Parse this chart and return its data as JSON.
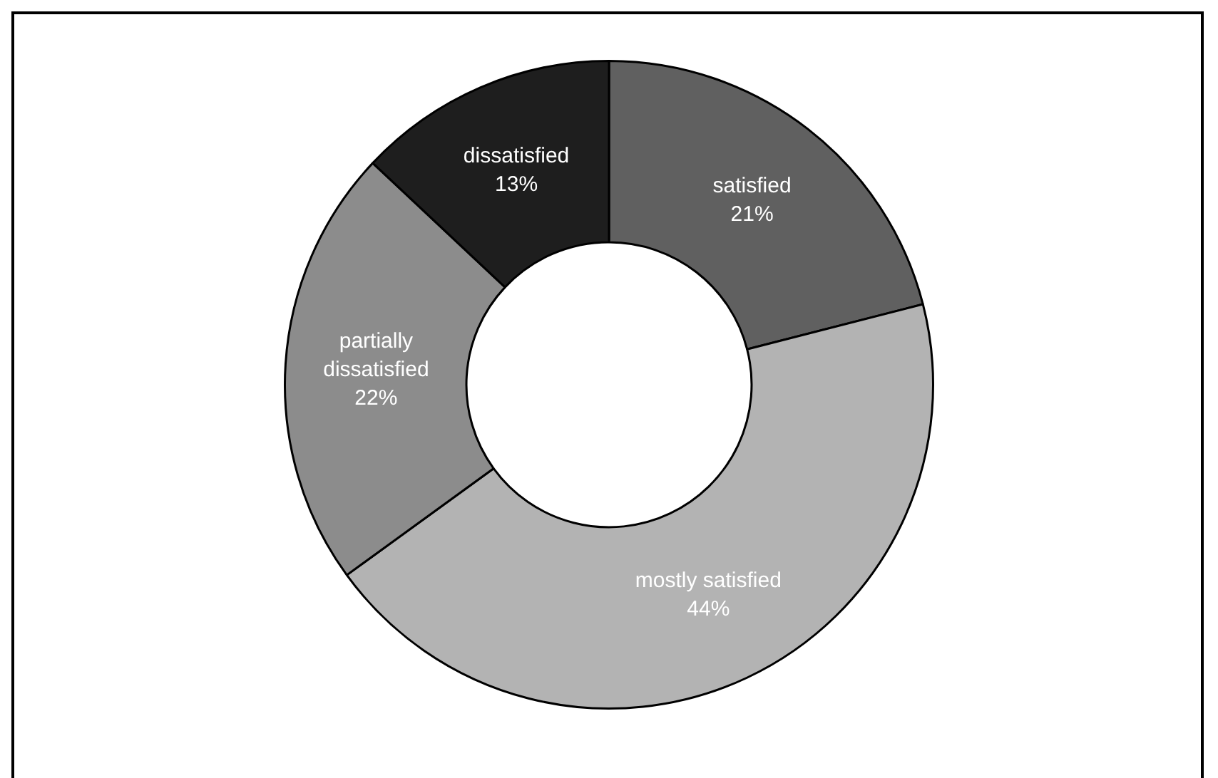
{
  "chart_data": {
    "type": "donut",
    "categories": [
      "satisfied",
      "mostly satisfied",
      "partially dissatisfied",
      "dissatisfied"
    ],
    "values": [
      21,
      44,
      22,
      13
    ],
    "colors": [
      "#606060",
      "#b3b3b3",
      "#8c8c8c",
      "#1e1e1e"
    ],
    "value_labels": [
      "21%",
      "44%",
      "22%",
      "13%"
    ],
    "legend": false
  }
}
